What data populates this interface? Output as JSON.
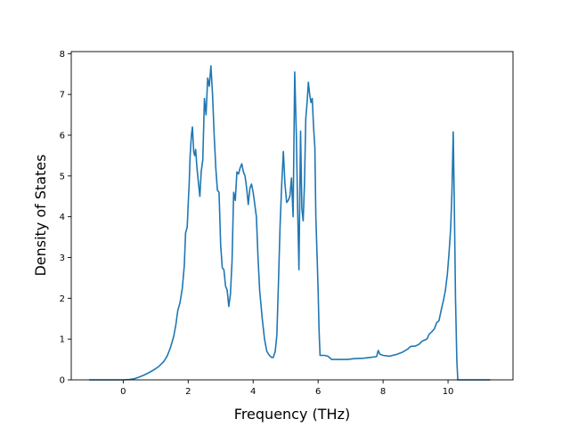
{
  "chart_data": {
    "type": "line",
    "title": "",
    "xlabel": "Frequency (THz)",
    "ylabel": "Density of States",
    "xlim": [
      -1.6,
      12.0
    ],
    "ylim": [
      0,
      8.05
    ],
    "xticks": [
      0,
      2,
      4,
      6,
      8,
      10
    ],
    "yticks": [
      0,
      1,
      2,
      3,
      4,
      5,
      6,
      7,
      8
    ],
    "grid": false,
    "legend": "none",
    "series": [
      {
        "color": "#1f77b4",
        "points": [
          [
            -1.05,
            0.0
          ],
          [
            -0.5,
            0.0
          ],
          [
            0.0,
            0.0
          ],
          [
            0.2,
            0.01
          ],
          [
            0.35,
            0.03
          ],
          [
            0.5,
            0.07
          ],
          [
            0.65,
            0.12
          ],
          [
            0.8,
            0.18
          ],
          [
            0.95,
            0.25
          ],
          [
            1.1,
            0.33
          ],
          [
            1.25,
            0.45
          ],
          [
            1.35,
            0.58
          ],
          [
            1.45,
            0.78
          ],
          [
            1.55,
            1.05
          ],
          [
            1.62,
            1.35
          ],
          [
            1.68,
            1.7
          ],
          [
            1.75,
            1.9
          ],
          [
            1.82,
            2.25
          ],
          [
            1.88,
            2.8
          ],
          [
            1.92,
            3.6
          ],
          [
            1.97,
            3.75
          ],
          [
            2.0,
            4.3
          ],
          [
            2.03,
            4.8
          ],
          [
            2.06,
            5.5
          ],
          [
            2.1,
            6.0
          ],
          [
            2.13,
            6.2
          ],
          [
            2.17,
            5.6
          ],
          [
            2.2,
            5.5
          ],
          [
            2.23,
            5.65
          ],
          [
            2.27,
            5.2
          ],
          [
            2.32,
            4.8
          ],
          [
            2.36,
            4.5
          ],
          [
            2.4,
            5.1
          ],
          [
            2.45,
            5.4
          ],
          [
            2.5,
            6.9
          ],
          [
            2.55,
            6.5
          ],
          [
            2.6,
            7.4
          ],
          [
            2.65,
            7.2
          ],
          [
            2.7,
            7.7
          ],
          [
            2.75,
            7.0
          ],
          [
            2.8,
            6.0
          ],
          [
            2.85,
            5.2
          ],
          [
            2.9,
            4.65
          ],
          [
            2.95,
            4.6
          ],
          [
            3.0,
            3.3
          ],
          [
            3.05,
            2.75
          ],
          [
            3.1,
            2.7
          ],
          [
            3.15,
            2.3
          ],
          [
            3.2,
            2.2
          ],
          [
            3.25,
            1.8
          ],
          [
            3.3,
            2.1
          ],
          [
            3.35,
            2.9
          ],
          [
            3.4,
            4.6
          ],
          [
            3.45,
            4.4
          ],
          [
            3.5,
            5.1
          ],
          [
            3.55,
            5.05
          ],
          [
            3.6,
            5.2
          ],
          [
            3.65,
            5.3
          ],
          [
            3.7,
            5.1
          ],
          [
            3.75,
            5.0
          ],
          [
            3.8,
            4.7
          ],
          [
            3.85,
            4.3
          ],
          [
            3.9,
            4.7
          ],
          [
            3.95,
            4.8
          ],
          [
            4.0,
            4.6
          ],
          [
            4.05,
            4.3
          ],
          [
            4.1,
            4.0
          ],
          [
            4.15,
            3.0
          ],
          [
            4.2,
            2.2
          ],
          [
            4.28,
            1.5
          ],
          [
            4.35,
            1.0
          ],
          [
            4.42,
            0.7
          ],
          [
            4.5,
            0.6
          ],
          [
            4.57,
            0.55
          ],
          [
            4.62,
            0.55
          ],
          [
            4.68,
            0.7
          ],
          [
            4.73,
            1.1
          ],
          [
            4.78,
            2.4
          ],
          [
            4.83,
            3.8
          ],
          [
            4.88,
            4.8
          ],
          [
            4.93,
            5.6
          ],
          [
            4.98,
            4.8
          ],
          [
            5.03,
            4.35
          ],
          [
            5.08,
            4.4
          ],
          [
            5.13,
            4.5
          ],
          [
            5.18,
            4.95
          ],
          [
            5.23,
            4.0
          ],
          [
            5.28,
            7.55
          ],
          [
            5.33,
            6.0
          ],
          [
            5.37,
            4.2
          ],
          [
            5.41,
            2.7
          ],
          [
            5.46,
            6.1
          ],
          [
            5.5,
            4.2
          ],
          [
            5.54,
            3.9
          ],
          [
            5.58,
            4.8
          ],
          [
            5.62,
            6.4
          ],
          [
            5.66,
            6.8
          ],
          [
            5.7,
            7.3
          ],
          [
            5.74,
            7.0
          ],
          [
            5.78,
            6.8
          ],
          [
            5.82,
            6.9
          ],
          [
            5.86,
            6.2
          ],
          [
            5.9,
            5.7
          ],
          [
            5.93,
            4.0
          ],
          [
            5.97,
            3.0
          ],
          [
            6.0,
            2.2
          ],
          [
            6.03,
            1.2
          ],
          [
            6.06,
            0.6
          ],
          [
            6.2,
            0.6
          ],
          [
            6.3,
            0.58
          ],
          [
            6.42,
            0.5
          ],
          [
            6.6,
            0.5
          ],
          [
            6.9,
            0.5
          ],
          [
            7.1,
            0.52
          ],
          [
            7.4,
            0.53
          ],
          [
            7.6,
            0.55
          ],
          [
            7.8,
            0.57
          ],
          [
            7.85,
            0.72
          ],
          [
            7.9,
            0.63
          ],
          [
            8.0,
            0.6
          ],
          [
            8.2,
            0.58
          ],
          [
            8.4,
            0.62
          ],
          [
            8.6,
            0.68
          ],
          [
            8.75,
            0.75
          ],
          [
            8.85,
            0.82
          ],
          [
            9.0,
            0.83
          ],
          [
            9.12,
            0.88
          ],
          [
            9.2,
            0.95
          ],
          [
            9.35,
            1.0
          ],
          [
            9.42,
            1.12
          ],
          [
            9.5,
            1.18
          ],
          [
            9.58,
            1.25
          ],
          [
            9.65,
            1.4
          ],
          [
            9.72,
            1.45
          ],
          [
            9.8,
            1.75
          ],
          [
            9.86,
            1.95
          ],
          [
            9.92,
            2.2
          ],
          [
            9.98,
            2.6
          ],
          [
            10.03,
            3.1
          ],
          [
            10.08,
            3.7
          ],
          [
            10.12,
            4.6
          ],
          [
            10.16,
            6.08
          ],
          [
            10.19,
            4.5
          ],
          [
            10.23,
            2.0
          ],
          [
            10.27,
            0.5
          ],
          [
            10.3,
            0.0
          ],
          [
            10.8,
            0.0
          ],
          [
            11.3,
            0.0
          ]
        ]
      }
    ]
  }
}
